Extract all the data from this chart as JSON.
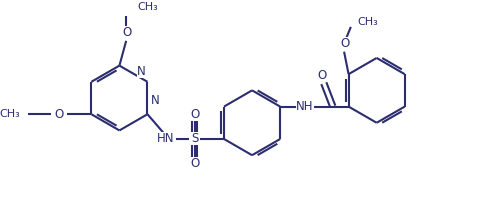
{
  "bg_color": "#ffffff",
  "line_color": "#2b2d6e",
  "line_width": 1.5,
  "font_size": 8.5,
  "figsize": [
    4.87,
    2.23
  ],
  "dpi": 100,
  "xlim": [
    0,
    10.2
  ],
  "ylim": [
    0,
    4.6
  ]
}
